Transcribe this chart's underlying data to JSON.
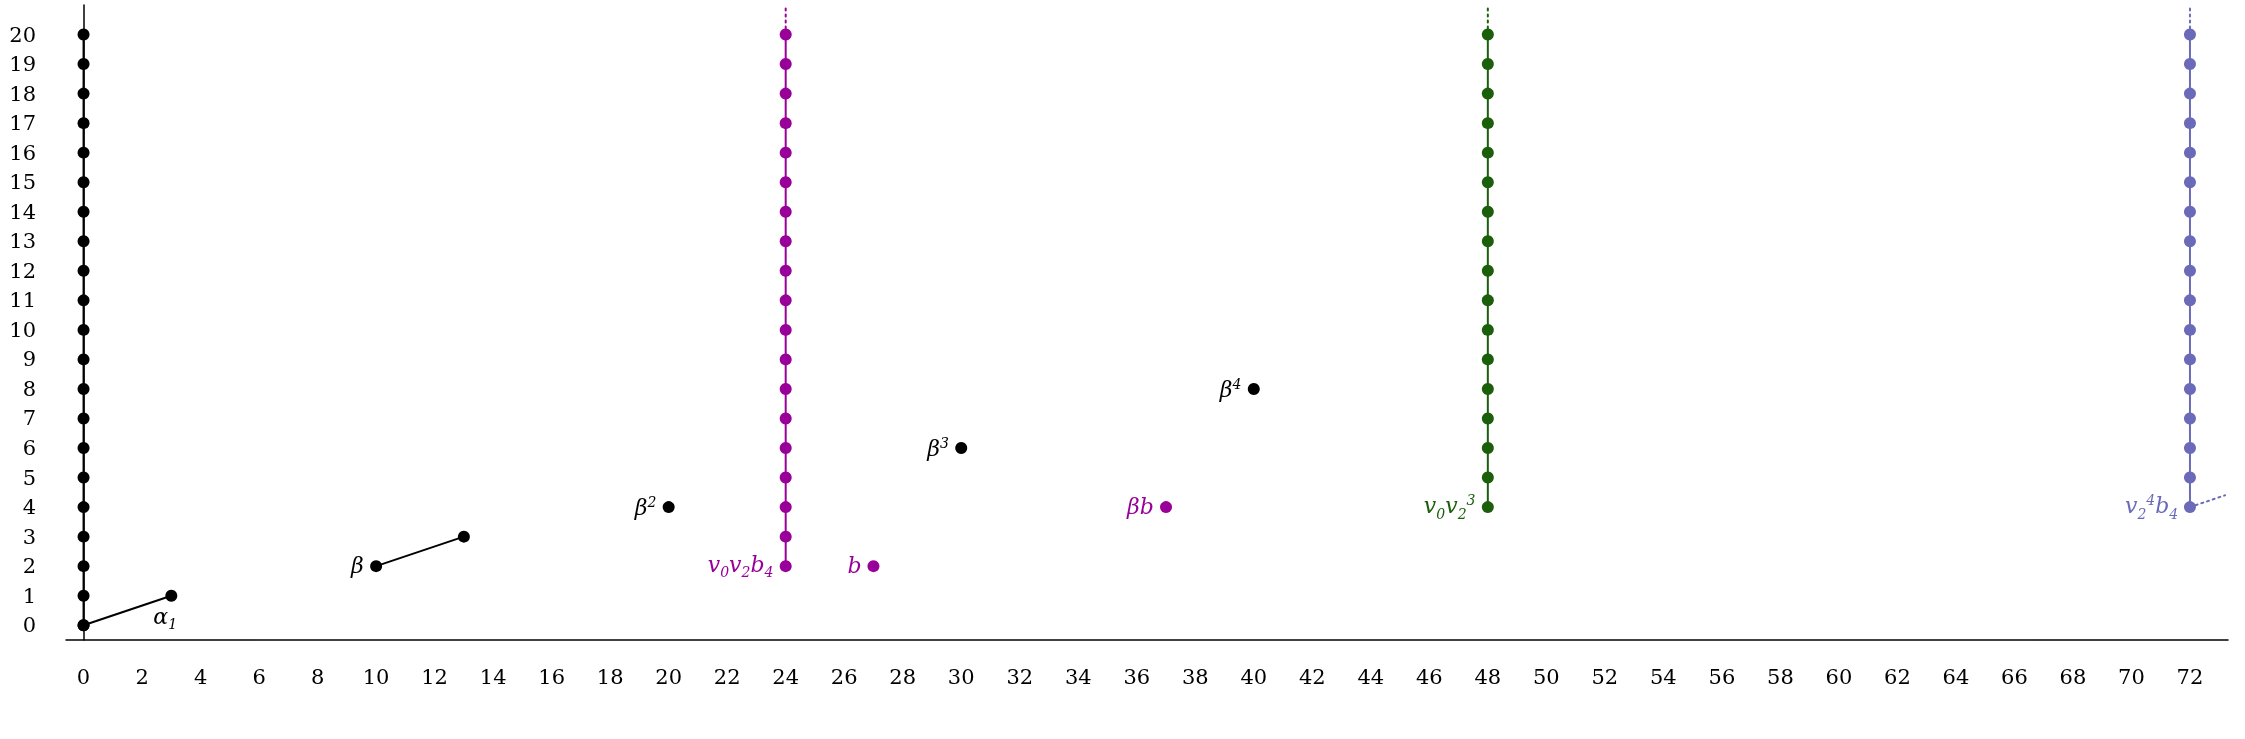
{
  "chart_data": {
    "type": "scatter",
    "xlim": [
      -0.6,
      73.3
    ],
    "ylim": [
      -0.5,
      21
    ],
    "xticks": [
      0,
      2,
      4,
      6,
      8,
      10,
      12,
      14,
      16,
      18,
      20,
      22,
      24,
      26,
      28,
      30,
      32,
      34,
      36,
      38,
      40,
      42,
      44,
      46,
      48,
      50,
      52,
      54,
      56,
      58,
      60,
      62,
      64,
      66,
      68,
      70,
      72
    ],
    "yticks": [
      0,
      1,
      2,
      3,
      4,
      5,
      6,
      7,
      8,
      9,
      10,
      11,
      12,
      13,
      14,
      15,
      16,
      17,
      18,
      19,
      20
    ],
    "grid": false,
    "marker": "circle",
    "series": [
      {
        "type": "line",
        "color": "#000000",
        "x": [
          0,
          0,
          0,
          0,
          0,
          0,
          0,
          0,
          0,
          0,
          0,
          0,
          0,
          0,
          0,
          0,
          0,
          0,
          0,
          0,
          0
        ],
        "values": [
          0,
          1,
          2,
          3,
          4,
          5,
          6,
          7,
          8,
          9,
          10,
          11,
          12,
          13,
          14,
          15,
          16,
          17,
          18,
          19,
          20
        ]
      },
      {
        "type": "line",
        "color": "#000000",
        "x": [
          0,
          3
        ],
        "values": [
          0,
          1
        ]
      },
      {
        "type": "line",
        "color": "#000000",
        "x": [
          10,
          13
        ],
        "values": [
          2,
          3
        ]
      },
      {
        "color": "#000000",
        "x": [
          20,
          30,
          40
        ],
        "values": [
          4,
          6,
          8
        ]
      },
      {
        "type": "line",
        "color": "#990099",
        "x": [
          24,
          24,
          24,
          24,
          24,
          24,
          24,
          24,
          24,
          24,
          24,
          24,
          24,
          24,
          24,
          24,
          24,
          24,
          24
        ],
        "values": [
          2,
          3,
          4,
          5,
          6,
          7,
          8,
          9,
          10,
          11,
          12,
          13,
          14,
          15,
          16,
          17,
          18,
          19,
          20
        ]
      },
      {
        "type": "line",
        "color": "#990099",
        "marker": "none",
        "line_style": "dotted",
        "x": [
          24,
          24
        ],
        "values": [
          20,
          21
        ]
      },
      {
        "color": "#990099",
        "x": [
          27,
          37
        ],
        "values": [
          2,
          4
        ]
      },
      {
        "type": "line",
        "color": "#1b5e0b",
        "x": [
          48,
          48,
          48,
          48,
          48,
          48,
          48,
          48,
          48,
          48,
          48,
          48,
          48,
          48,
          48,
          48,
          48
        ],
        "values": [
          4,
          5,
          6,
          7,
          8,
          9,
          10,
          11,
          12,
          13,
          14,
          15,
          16,
          17,
          18,
          19,
          20
        ]
      },
      {
        "type": "line",
        "color": "#1b5e0b",
        "marker": "none",
        "line_style": "dotted",
        "x": [
          48,
          48
        ],
        "values": [
          20,
          21
        ]
      },
      {
        "type": "line",
        "color": "#6a6ab8",
        "x": [
          72,
          72,
          72,
          72,
          72,
          72,
          72,
          72,
          72,
          72,
          72,
          72,
          72,
          72,
          72,
          72,
          72
        ],
        "values": [
          4,
          5,
          6,
          7,
          8,
          9,
          10,
          11,
          12,
          13,
          14,
          15,
          16,
          17,
          18,
          19,
          20
        ]
      },
      {
        "type": "line",
        "color": "#6a6ab8",
        "marker": "none",
        "line_style": "dotted",
        "x": [
          72,
          72
        ],
        "values": [
          20,
          21
        ]
      },
      {
        "type": "line",
        "color": "#6a6ab8",
        "marker": "none",
        "line_style": "dotted",
        "x": [
          72,
          73.2
        ],
        "values": [
          4,
          4.4
        ]
      }
    ],
    "annotations": [
      {
        "text": "α$_{1}$",
        "x": 3,
        "y": 1
      },
      {
        "text": "β",
        "x": 10,
        "y": 2
      },
      {
        "text": "β$^{2}$",
        "x": 20,
        "y": 4
      },
      {
        "text": "β$^{3}$",
        "x": 30,
        "y": 6
      },
      {
        "text": "β$^{4}$",
        "x": 40,
        "y": 8
      },
      {
        "text": "v$_{0}$v$_{2}$b$_{4}$",
        "x": 24,
        "y": 2
      },
      {
        "text": "b",
        "x": 27,
        "y": 2
      },
      {
        "text": "βb",
        "x": 37,
        "y": 4
      },
      {
        "text": "v$_{0}$v$_{2}$$^{3}$",
        "x": 48,
        "y": 4
      },
      {
        "text": "v$_{2}$$^{4}$b$_{4}$",
        "x": 72,
        "y": 4
      }
    ]
  }
}
